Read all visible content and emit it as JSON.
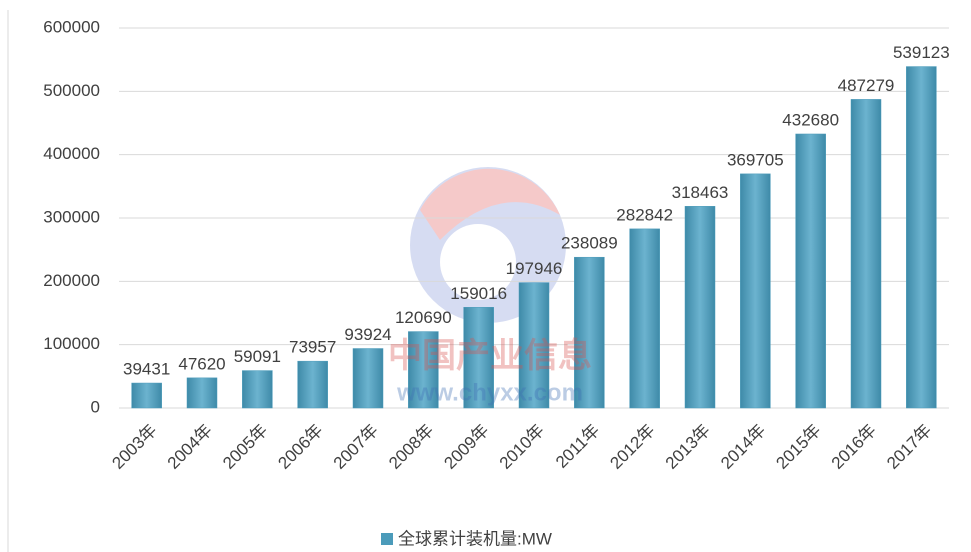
{
  "chart_data": {
    "type": "bar",
    "categories": [
      "2003年",
      "2004年",
      "2005年",
      "2006年",
      "2007年",
      "2008年",
      "2009年",
      "2010年",
      "2011年",
      "2012年",
      "2013年",
      "2014年",
      "2015年",
      "2016年",
      "2017年"
    ],
    "series": [
      {
        "name": "全球累计装机量:MW",
        "color": "#4b9bba",
        "values": [
          39431,
          47620,
          59091,
          73957,
          93924,
          120690,
          159016,
          197946,
          238089,
          282842,
          318463,
          369705,
          432680,
          487279,
          539123
        ]
      }
    ],
    "ylim": [
      0,
      600000
    ],
    "yticks": [
      0,
      100000,
      200000,
      300000,
      400000,
      500000,
      600000
    ],
    "grid": true,
    "legend": "bottom",
    "watermark": {
      "name": "中国产业信息",
      "url": "www.chyxx.com"
    }
  }
}
